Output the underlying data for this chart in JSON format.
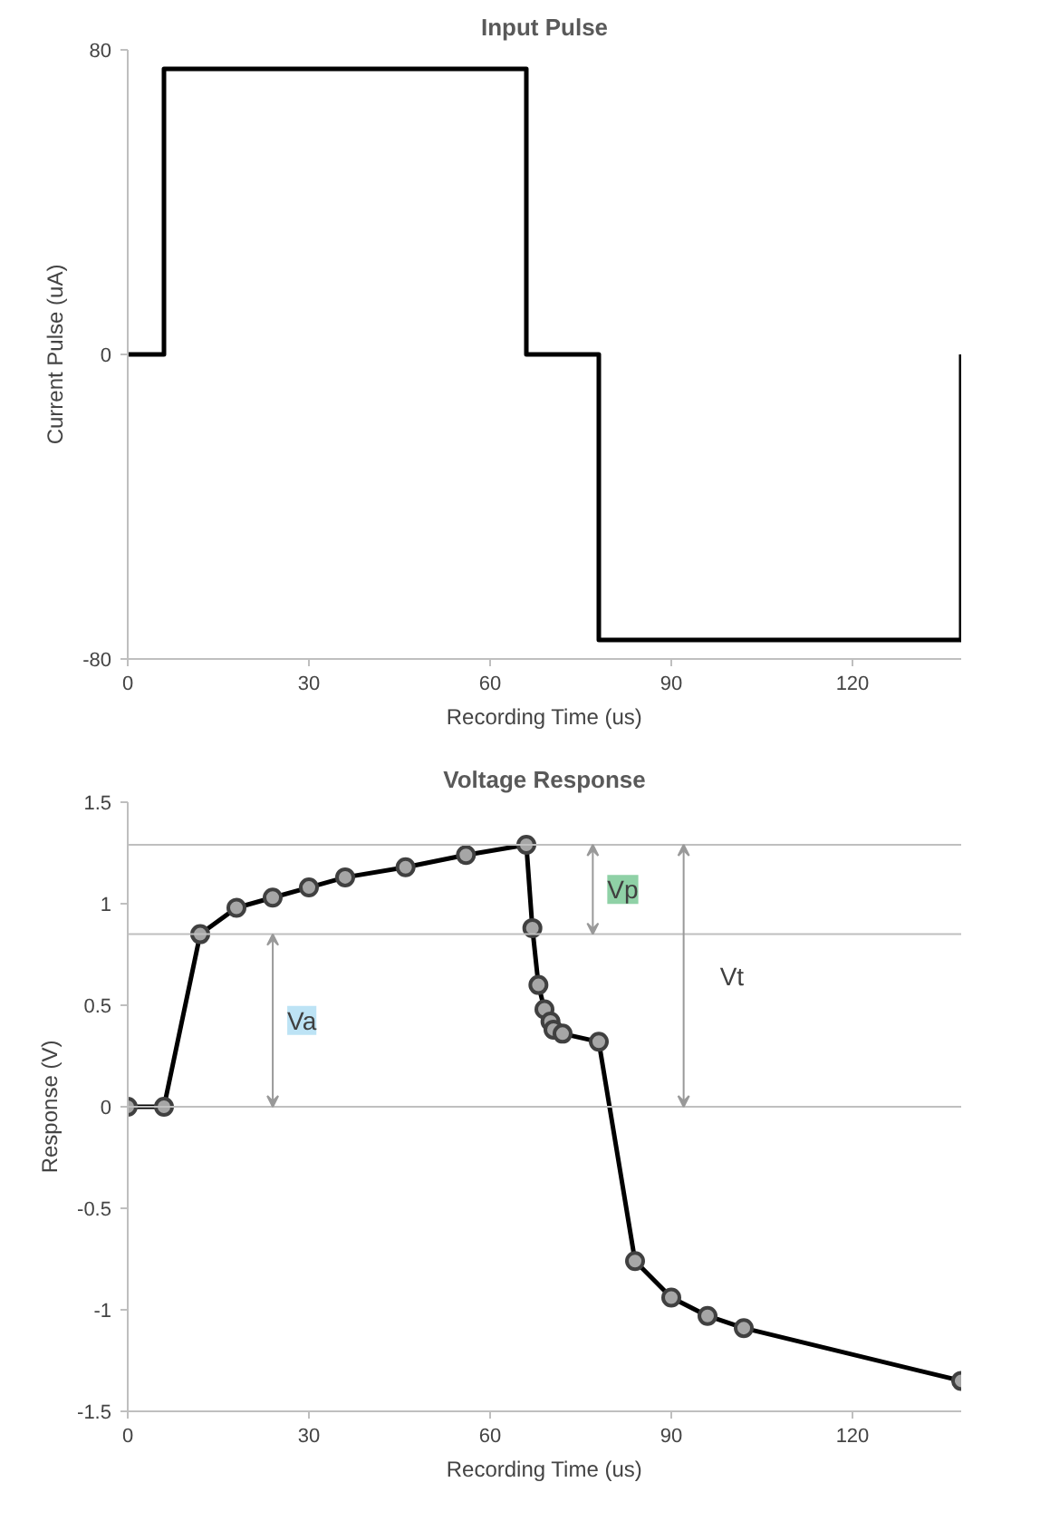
{
  "chart_data": [
    {
      "type": "step",
      "title": "Input Pulse",
      "xlabel": "Recording Time (us)",
      "ylabel": "Current Pulse (uA)",
      "x": [
        0,
        6,
        66,
        78,
        138
      ],
      "values": [
        0,
        75,
        0,
        -75,
        0
      ],
      "color": "#000000",
      "xlim": [
        0,
        138
      ],
      "xticks": [
        0,
        30,
        60,
        90,
        120
      ],
      "ylim": [
        -80,
        80
      ],
      "yticks": [
        -80,
        0,
        80
      ],
      "grid": false,
      "marker": "none",
      "line_style": "solid"
    },
    {
      "type": "line",
      "title": "Voltage Response",
      "xlabel": "Recording Time (us)",
      "ylabel": "Response (V)",
      "x": [
        0,
        6,
        12,
        18,
        24,
        30,
        36,
        46,
        56,
        66,
        67,
        68,
        69,
        70,
        70.5,
        72,
        78,
        84,
        90,
        96,
        102,
        138
      ],
      "values": [
        0,
        0,
        0.85,
        0.98,
        1.03,
        1.08,
        1.13,
        1.18,
        1.24,
        1.29,
        0.88,
        0.6,
        0.48,
        0.42,
        0.38,
        0.36,
        0.32,
        -0.76,
        -0.94,
        -1.03,
        -1.09,
        -1.35
      ],
      "color": "#000000",
      "xlim": [
        0,
        138
      ],
      "xticks": [
        0,
        30,
        60,
        90,
        120
      ],
      "ylim": [
        -1.5,
        1.5
      ],
      "yticks": [
        -1.5,
        -1,
        -0.5,
        0,
        0.5,
        1,
        1.5
      ],
      "grid": false,
      "marker": "circle",
      "line_style": "solid",
      "ref_lines": [
        {
          "axis": "y",
          "value": 0,
          "label": null,
          "color": "#bfbfbf"
        },
        {
          "axis": "y",
          "value": 0.85,
          "label": null,
          "color": "#bfbfbf"
        },
        {
          "axis": "y",
          "value": 1.29,
          "label": null,
          "color": "#bfbfbf"
        }
      ],
      "annotations": [
        "Va",
        "Vp",
        "Vt"
      ]
    }
  ]
}
